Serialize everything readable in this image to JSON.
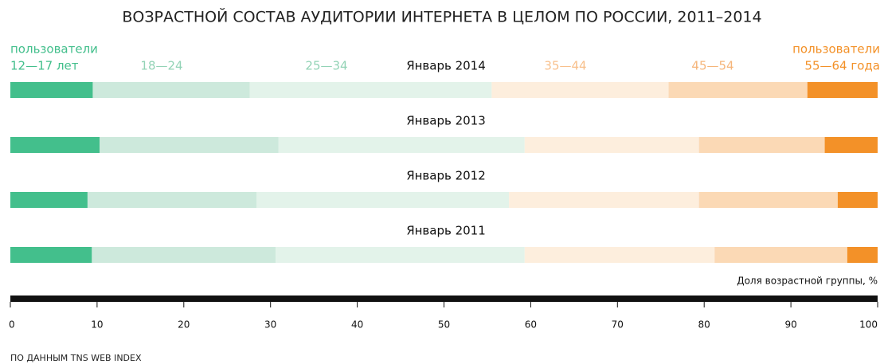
{
  "chart_data": {
    "type": "stacked_barh",
    "title": "ВОЗРАСТНОЙ СОСТАВ АУДИТОРИИ ИНТЕРНЕТА В ЦЕЛОМ ПО РОССИИ, 2011–2014",
    "legend_left_note": "пользователи",
    "legend_right_note": "пользователи",
    "categories": [
      "Январь 2014",
      "Январь 2013",
      "Январь 2012",
      "Январь 2011"
    ],
    "series": [
      {
        "name": "12—17 лет",
        "color": "#43bf8c",
        "label_color": "#43bf8c",
        "values": [
          9.5,
          10.3,
          8.9,
          9.4
        ]
      },
      {
        "name": "18—24",
        "color": "#cde9dc",
        "label_color": "#93d3b6",
        "values": [
          18.1,
          20.6,
          19.5,
          21.2
        ]
      },
      {
        "name": "25—34",
        "color": "#e3f3ea",
        "label_color": "#93d3b6",
        "values": [
          27.9,
          28.4,
          29.1,
          28.7
        ]
      },
      {
        "name": "35—44",
        "color": "#fdeedd",
        "label_color": "#f8c08c",
        "values": [
          20.4,
          20.1,
          21.9,
          21.9
        ]
      },
      {
        "name": "45—54",
        "color": "#fbd9b5",
        "label_color": "#f5b57a",
        "values": [
          16.0,
          14.5,
          16.0,
          15.3
        ]
      },
      {
        "name": "55—64 года",
        "color": "#f39128",
        "label_color": "#f39128",
        "values": [
          8.1,
          6.1,
          4.6,
          3.5
        ]
      }
    ],
    "xlabel": "Доля возрастной группы, %",
    "xlim": [
      0,
      100
    ],
    "xticks": [
      0,
      10,
      20,
      30,
      40,
      50,
      60,
      70,
      80,
      90,
      100
    ],
    "source": "ПО ДАННЫМ TNS WEB INDEX"
  }
}
